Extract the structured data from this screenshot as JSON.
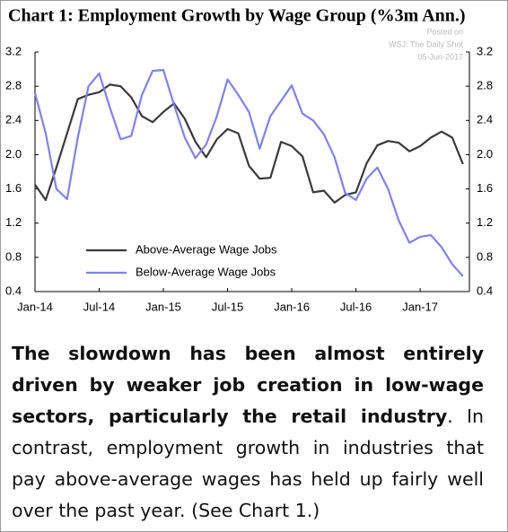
{
  "chart_data": {
    "type": "line",
    "title": "Chart 1: Employment Growth by Wage Group (%3m Ann.)",
    "annotations": [
      "Posted on",
      "WSJ: The Daily Shot",
      "05-Jun-2017"
    ],
    "categories": [
      "Jan-14",
      null,
      null,
      null,
      null,
      null,
      "Jul-14",
      null,
      null,
      null,
      null,
      null,
      "Jan-15",
      null,
      null,
      null,
      null,
      null,
      "Jul-15",
      null,
      null,
      null,
      null,
      null,
      "Jan-16",
      null,
      null,
      null,
      null,
      null,
      "Jul-16",
      null,
      null,
      null,
      null,
      null,
      "Jan-17",
      null,
      null,
      null,
      null
    ],
    "series": [
      {
        "name": "Above-Average Wage Jobs",
        "color": "#3a3a3a",
        "values": [
          1.65,
          1.47,
          1.85,
          2.25,
          2.65,
          2.7,
          2.73,
          2.82,
          2.8,
          2.67,
          2.45,
          2.38,
          2.5,
          2.6,
          2.42,
          2.15,
          1.97,
          2.18,
          2.3,
          2.25,
          1.87,
          1.72,
          1.73,
          2.15,
          2.1,
          1.98,
          1.56,
          1.58,
          1.44,
          1.53,
          1.56,
          1.9,
          2.11,
          2.16,
          2.14,
          2.04,
          2.1,
          2.2,
          2.27,
          2.2,
          1.89
        ]
      },
      {
        "name": "Below-Average Wage Jobs",
        "color": "#8080f0",
        "values": [
          2.72,
          2.25,
          1.6,
          1.48,
          2.2,
          2.8,
          2.95,
          2.55,
          2.18,
          2.22,
          2.7,
          2.98,
          2.99,
          2.58,
          2.2,
          1.96,
          2.12,
          2.45,
          2.88,
          2.7,
          2.5,
          2.07,
          2.45,
          2.63,
          2.81,
          2.48,
          2.4,
          2.24,
          1.97,
          1.55,
          1.47,
          1.72,
          1.85,
          1.6,
          1.23,
          0.97,
          1.04,
          1.06,
          0.92,
          0.72,
          0.58
        ]
      }
    ],
    "ylim": [
      0.4,
      3.2
    ],
    "yticks": [
      {
        "value": 0.4,
        "label": "0.4"
      },
      {
        "value": 0.8,
        "label": "0.8"
      },
      {
        "value": 1.2,
        "label": "1.2"
      },
      {
        "value": 1.6,
        "label": "1.6"
      },
      {
        "value": 2.0,
        "label": "2.0"
      },
      {
        "value": 2.4,
        "label": "2.4"
      },
      {
        "value": 2.8,
        "label": "2.8"
      },
      {
        "value": 3.2,
        "label": "3.2"
      }
    ],
    "y2lim": [
      0.4,
      3.2
    ],
    "y2ticks": [
      {
        "value": 0.4,
        "label": "0.4"
      },
      {
        "value": 0.8,
        "label": "0.8"
      },
      {
        "value": 1.2,
        "label": "1.2"
      },
      {
        "value": 1.6,
        "label": "1.6"
      },
      {
        "value": 2.0,
        "label": "2.0"
      },
      {
        "value": 2.4,
        "label": "2.4"
      },
      {
        "value": 2.8,
        "label": "2.8"
      },
      {
        "value": 3.2,
        "label": "3.2"
      }
    ],
    "grid": false,
    "legend": "lower-left"
  },
  "text": {
    "bold": "The slowdown has been almost entirely driven by weaker job creation in low-wage sectors, particularly the retail industry",
    "normal": ". In contrast, employment growth in industries that pay above-average wages has held up fairly well over the past year. (See Chart 1.)"
  }
}
